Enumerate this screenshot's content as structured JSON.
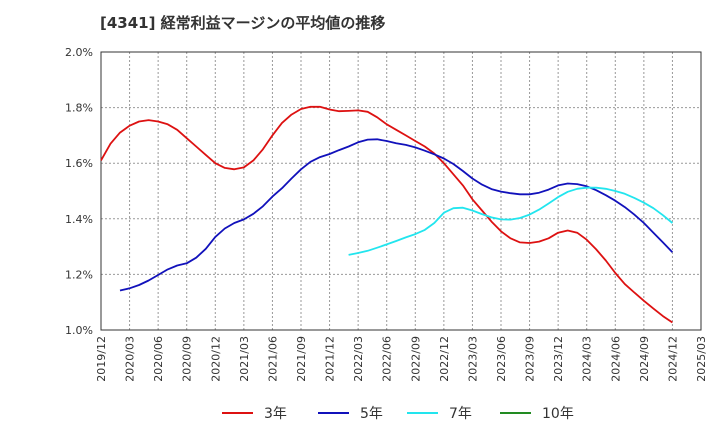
{
  "chart_data": {
    "type": "line",
    "title": "[4341]  経常利益マージンの平均値の推移",
    "xlabel": "",
    "ylabel": "",
    "x_ticks": [
      "2019/12",
      "2020/03",
      "2020/06",
      "2020/09",
      "2020/12",
      "2021/03",
      "2021/06",
      "2021/09",
      "2021/12",
      "2022/03",
      "2022/06",
      "2022/09",
      "2022/12",
      "2023/03",
      "2023/06",
      "2023/09",
      "2023/12",
      "2024/03",
      "2024/06",
      "2024/09",
      "2024/12",
      "2025/03"
    ],
    "y_ticks": [
      "1.0%",
      "1.2%",
      "1.4%",
      "1.6%",
      "1.8%",
      "2.0%"
    ],
    "ylim": [
      1.0,
      2.0
    ],
    "grid": true,
    "legend_position": "bottom",
    "series": [
      {
        "name": "3年",
        "color": "#dd1111",
        "x": [
          "2019/12",
          "2020/01",
          "2020/02",
          "2020/03",
          "2020/04",
          "2020/05",
          "2020/06",
          "2020/07",
          "2020/08",
          "2020/09",
          "2020/10",
          "2020/11",
          "2020/12",
          "2021/01",
          "2021/02",
          "2021/03",
          "2021/04",
          "2021/05",
          "2021/06",
          "2021/07",
          "2021/08",
          "2021/09",
          "2021/10",
          "2021/11",
          "2021/12",
          "2022/01",
          "2022/02",
          "2022/03",
          "2022/04",
          "2022/05",
          "2022/06",
          "2022/07",
          "2022/08",
          "2022/09",
          "2022/10",
          "2022/11",
          "2022/12",
          "2023/01",
          "2023/02",
          "2023/03",
          "2023/04",
          "2023/05",
          "2023/06",
          "2023/07",
          "2023/08",
          "2023/09",
          "2023/10",
          "2023/11",
          "2023/12",
          "2024/01",
          "2024/02",
          "2024/03",
          "2024/04",
          "2024/05",
          "2024/06",
          "2024/07",
          "2024/08",
          "2024/09",
          "2024/10",
          "2024/11",
          "2024/12"
        ],
        "values": [
          1.61,
          1.67,
          1.71,
          1.735,
          1.75,
          1.755,
          1.75,
          1.74,
          1.72,
          1.69,
          1.66,
          1.63,
          1.6,
          1.583,
          1.578,
          1.585,
          1.61,
          1.65,
          1.7,
          1.745,
          1.775,
          1.795,
          1.803,
          1.803,
          1.793,
          1.787,
          1.788,
          1.79,
          1.785,
          1.765,
          1.74,
          1.72,
          1.7,
          1.68,
          1.66,
          1.635,
          1.6,
          1.56,
          1.52,
          1.47,
          1.43,
          1.39,
          1.355,
          1.33,
          1.315,
          1.313,
          1.318,
          1.33,
          1.35,
          1.358,
          1.35,
          1.325,
          1.29,
          1.25,
          1.205,
          1.165,
          1.135,
          1.105,
          1.077,
          1.05,
          1.027
        ]
      },
      {
        "name": "5年",
        "color": "#1111bb",
        "x": [
          "2020/02",
          "2020/03",
          "2020/04",
          "2020/05",
          "2020/06",
          "2020/07",
          "2020/08",
          "2020/09",
          "2020/10",
          "2020/11",
          "2020/12",
          "2021/01",
          "2021/02",
          "2021/03",
          "2021/04",
          "2021/05",
          "2021/06",
          "2021/07",
          "2021/08",
          "2021/09",
          "2021/10",
          "2021/11",
          "2021/12",
          "2022/01",
          "2022/02",
          "2022/03",
          "2022/04",
          "2022/05",
          "2022/06",
          "2022/07",
          "2022/08",
          "2022/09",
          "2022/10",
          "2022/11",
          "2022/12",
          "2023/01",
          "2023/02",
          "2023/03",
          "2023/04",
          "2023/05",
          "2023/06",
          "2023/07",
          "2023/08",
          "2023/09",
          "2023/10",
          "2023/11",
          "2023/12",
          "2024/01",
          "2024/02",
          "2024/03",
          "2024/04",
          "2024/05",
          "2024/06",
          "2024/07",
          "2024/08",
          "2024/09",
          "2024/10",
          "2024/11",
          "2024/12"
        ],
        "values": [
          1.142,
          1.15,
          1.162,
          1.178,
          1.198,
          1.218,
          1.232,
          1.24,
          1.26,
          1.292,
          1.335,
          1.365,
          1.385,
          1.398,
          1.418,
          1.445,
          1.48,
          1.51,
          1.545,
          1.578,
          1.605,
          1.622,
          1.633,
          1.647,
          1.66,
          1.675,
          1.685,
          1.686,
          1.68,
          1.672,
          1.666,
          1.657,
          1.645,
          1.632,
          1.617,
          1.597,
          1.572,
          1.545,
          1.523,
          1.507,
          1.498,
          1.492,
          1.488,
          1.488,
          1.494,
          1.505,
          1.52,
          1.527,
          1.525,
          1.517,
          1.503,
          1.485,
          1.465,
          1.442,
          1.415,
          1.385,
          1.35,
          1.315,
          1.28
        ]
      },
      {
        "name": "7年",
        "color": "#22e5ee",
        "x": [
          "2022/02",
          "2022/03",
          "2022/04",
          "2022/05",
          "2022/06",
          "2022/07",
          "2022/08",
          "2022/09",
          "2022/10",
          "2022/11",
          "2022/12",
          "2023/01",
          "2023/02",
          "2023/03",
          "2023/04",
          "2023/05",
          "2023/06",
          "2023/07",
          "2023/08",
          "2023/09",
          "2023/10",
          "2023/11",
          "2023/12",
          "2024/01",
          "2024/02",
          "2024/03",
          "2024/04",
          "2024/05",
          "2024/06",
          "2024/07",
          "2024/08",
          "2024/09",
          "2024/10",
          "2024/11",
          "2024/12"
        ],
        "values": [
          1.27,
          1.277,
          1.285,
          1.296,
          1.308,
          1.32,
          1.333,
          1.345,
          1.36,
          1.385,
          1.422,
          1.438,
          1.44,
          1.43,
          1.417,
          1.405,
          1.398,
          1.397,
          1.403,
          1.415,
          1.433,
          1.455,
          1.478,
          1.497,
          1.508,
          1.512,
          1.512,
          1.508,
          1.5,
          1.49,
          1.475,
          1.458,
          1.438,
          1.413,
          1.385
        ]
      },
      {
        "name": "10年",
        "color": "#228b22",
        "x": [],
        "values": []
      }
    ]
  }
}
